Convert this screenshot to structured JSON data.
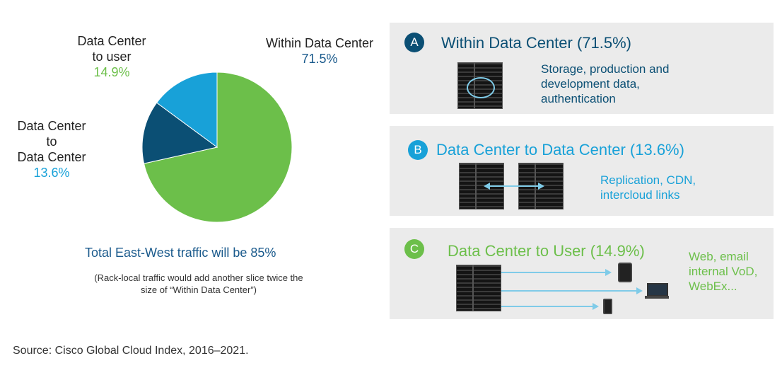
{
  "chart_data": {
    "type": "pie",
    "slices": [
      {
        "label": "Within Data Center",
        "value": 71.5,
        "color": "#6cbf4a"
      },
      {
        "label": "Data Center to Data Center",
        "value": 13.6,
        "color": "#0b4f74"
      },
      {
        "label": "Data Center to user",
        "value": 14.9,
        "color": "#18a1d8"
      }
    ]
  },
  "labels": {
    "within": {
      "line1": "Within Data Center",
      "value": "71.5%"
    },
    "to_user": {
      "line1": "Data Center",
      "line2": "to user",
      "value": "14.9%"
    },
    "dc_to_dc": {
      "line1": "Data Center",
      "line2": "to",
      "line3": "Data Center",
      "value": "13.6%"
    }
  },
  "total_text": "Total East-West traffic will be 85%",
  "note_text": "(Rack-local traffic would add another slice twice the size of “Within Data Center”)",
  "source_text": "Source: Cisco Global Cloud Index, 2016–2021.",
  "colors": {
    "green": "#6cbf4a",
    "dark_blue": "#0b4f74",
    "light_blue": "#18a1d8",
    "panel_bg": "#ebebeb"
  },
  "panels": {
    "a": {
      "badge": "A",
      "title": "Within Data Center (71.5%)",
      "desc": [
        "Storage, production and",
        "development data,",
        "authentication"
      ]
    },
    "b": {
      "badge": "B",
      "title": "Data Center to Data Center (13.6%)",
      "desc": [
        "Replication, CDN,",
        "intercloud links"
      ]
    },
    "c": {
      "badge": "C",
      "title": "Data Center to User (14.9%)",
      "desc": [
        "Web, email",
        "internal VoD,",
        "WebEx..."
      ]
    }
  }
}
